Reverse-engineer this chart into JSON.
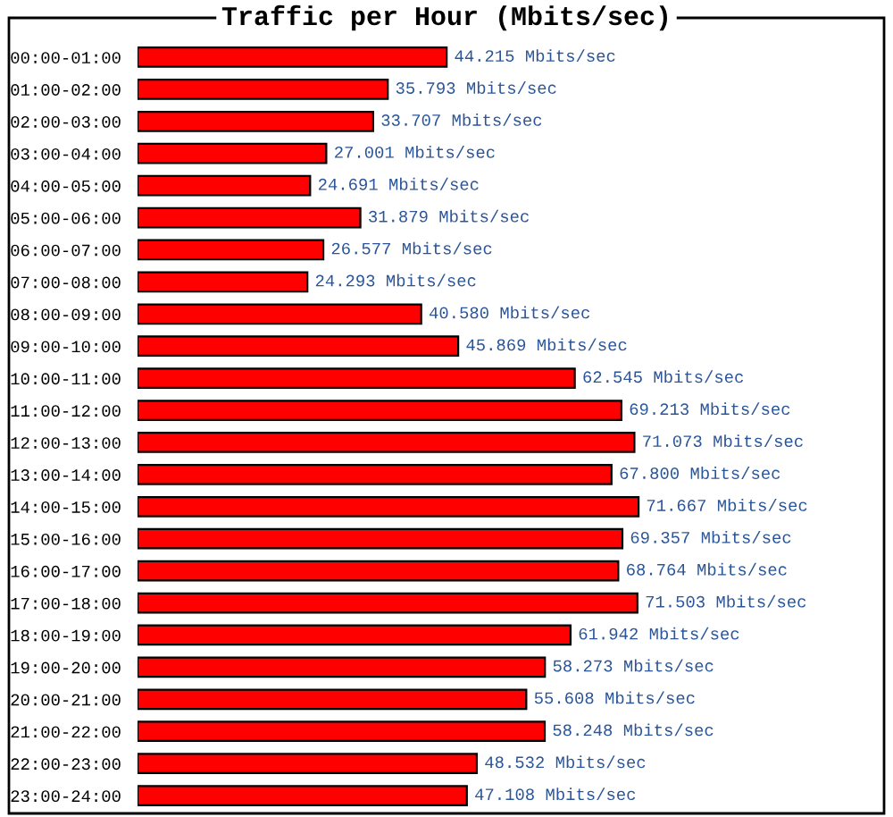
{
  "chart_data": {
    "type": "bar",
    "orientation": "horizontal",
    "title": "Traffic per Hour (Mbits/sec)",
    "categories": [
      "00:00-01:00",
      "01:00-02:00",
      "02:00-03:00",
      "03:00-04:00",
      "04:00-05:00",
      "05:00-06:00",
      "06:00-07:00",
      "07:00-08:00",
      "08:00-09:00",
      "09:00-10:00",
      "10:00-11:00",
      "11:00-12:00",
      "12:00-13:00",
      "13:00-14:00",
      "14:00-15:00",
      "15:00-16:00",
      "16:00-17:00",
      "17:00-18:00",
      "18:00-19:00",
      "19:00-20:00",
      "20:00-21:00",
      "21:00-22:00",
      "22:00-23:00",
      "23:00-24:00"
    ],
    "values": [
      44.215,
      35.793,
      33.707,
      27.001,
      24.691,
      31.879,
      26.577,
      24.293,
      40.58,
      45.869,
      62.545,
      69.213,
      71.073,
      67.8,
      71.667,
      69.357,
      68.764,
      71.503,
      61.942,
      58.273,
      55.608,
      58.248,
      48.532,
      47.108
    ],
    "value_labels": [
      "44.215 Mbits/sec",
      "35.793 Mbits/sec",
      "33.707 Mbits/sec",
      "27.001 Mbits/sec",
      "24.691 Mbits/sec",
      "31.879 Mbits/sec",
      "26.577 Mbits/sec",
      "24.293 Mbits/sec",
      "40.580 Mbits/sec",
      "45.869 Mbits/sec",
      "62.545 Mbits/sec",
      "69.213 Mbits/sec",
      "71.073 Mbits/sec",
      "67.800 Mbits/sec",
      "71.667 Mbits/sec",
      "69.357 Mbits/sec",
      "68.764 Mbits/sec",
      "71.503 Mbits/sec",
      "61.942 Mbits/sec",
      "58.273 Mbits/sec",
      "55.608 Mbits/sec",
      "58.248 Mbits/sec",
      "48.532 Mbits/sec",
      "47.108 Mbits/sec"
    ],
    "color": "#ff0000",
    "tick_labels": "y",
    "grid": false,
    "legend": false
  }
}
